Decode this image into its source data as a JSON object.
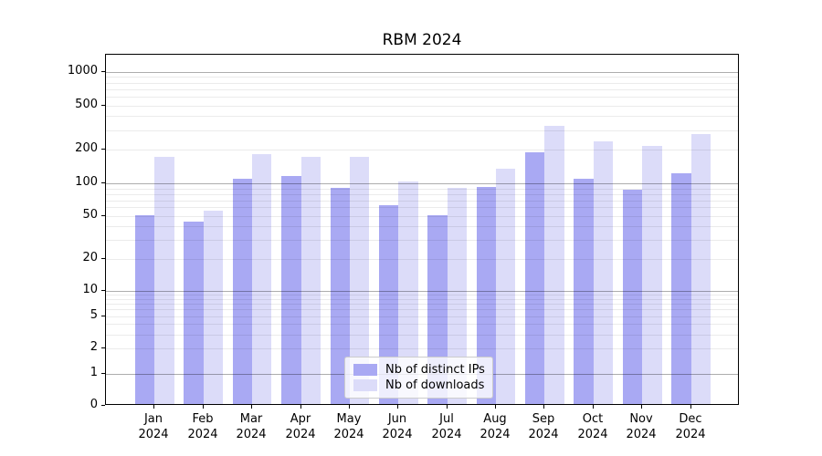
{
  "title": "RBM 2024",
  "colors": {
    "ips": "#a9a9f3",
    "downloads": "#dcdcf9",
    "axis": "#000000",
    "major_grid": "#b0b0b0",
    "minor_grid": "#e9e9e9",
    "legend_border": "#cccccc",
    "background": "#ffffff"
  },
  "chart_data": {
    "type": "bar",
    "title": "RBM 2024",
    "months": [
      "Jan",
      "Feb",
      "Mar",
      "Apr",
      "May",
      "Jun",
      "Jul",
      "Aug",
      "Sep",
      "Oct",
      "Nov",
      "Dec"
    ],
    "year": "2024",
    "series": [
      {
        "name": "Nb of distinct IPs",
        "values": [
          49,
          43,
          106,
          113,
          88,
          61,
          49,
          89,
          184,
          107,
          84,
          119
        ]
      },
      {
        "name": "Nb of downloads",
        "values": [
          166,
          54,
          177,
          166,
          167,
          100,
          88,
          131,
          318,
          230,
          209,
          266
        ]
      }
    ],
    "yscale": "symlog",
    "yticks": [
      0,
      1,
      2,
      5,
      10,
      20,
      50,
      100,
      200,
      500,
      1000
    ],
    "ytick_labels": [
      "0",
      "1",
      "2",
      "5",
      "10",
      "20",
      "50",
      "100",
      "200",
      "500",
      "1000"
    ],
    "ylim": [
      0,
      1400
    ],
    "xlabel": "",
    "ylabel": "",
    "grid": true,
    "legend_position": "lower center"
  }
}
